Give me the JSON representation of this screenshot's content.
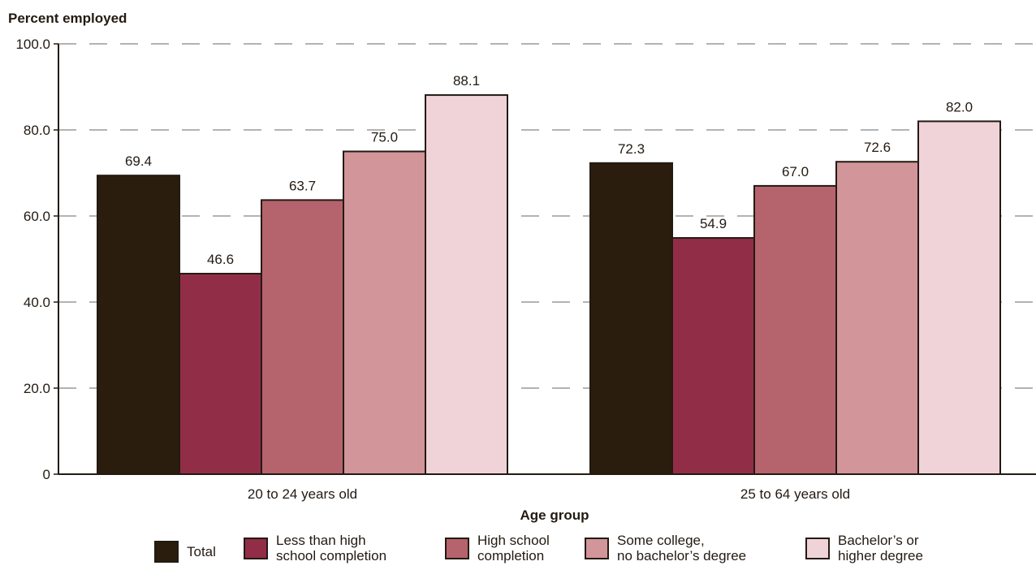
{
  "chart_data": {
    "type": "bar",
    "ylabel": "Percent employed",
    "xlabel": "Age group",
    "ylim": [
      0,
      100
    ],
    "y_ticks": [
      "0",
      "20.0",
      "40.0",
      "60.0",
      "80.0",
      "100.0"
    ],
    "y_tick_values": [
      0,
      20,
      40,
      60,
      80,
      100
    ],
    "grid": "dashed horizontal",
    "legend_position": "bottom",
    "categories": [
      "20 to 24 years old",
      "25 to 64 years old"
    ],
    "series": [
      {
        "name": "Total",
        "values": [
          69.4,
          72.3
        ],
        "labels": [
          "69.4",
          "72.3"
        ],
        "color": "#2b1d0e"
      },
      {
        "name": "Less than high\nschool completion",
        "values": [
          46.6,
          54.9
        ],
        "labels": [
          "46.6",
          "54.9"
        ],
        "color": "#922d48"
      },
      {
        "name": "High school\ncompletion",
        "values": [
          63.7,
          67.0
        ],
        "labels": [
          "63.7",
          "67.0"
        ],
        "color": "#b5646d"
      },
      {
        "name": "Some college,\nno bachelor’s degree",
        "values": [
          75.0,
          72.6
        ],
        "labels": [
          "75.0",
          "72.6"
        ],
        "color": "#d1959a"
      },
      {
        "name": "Bachelor’s or\nhigher degree",
        "values": [
          88.1,
          82.0
        ],
        "labels": [
          "88.1",
          "82.0"
        ],
        "color": "#f0d3d8"
      }
    ],
    "bar_outline_color": "#231a12",
    "grid_color": "#9a9a9a"
  }
}
